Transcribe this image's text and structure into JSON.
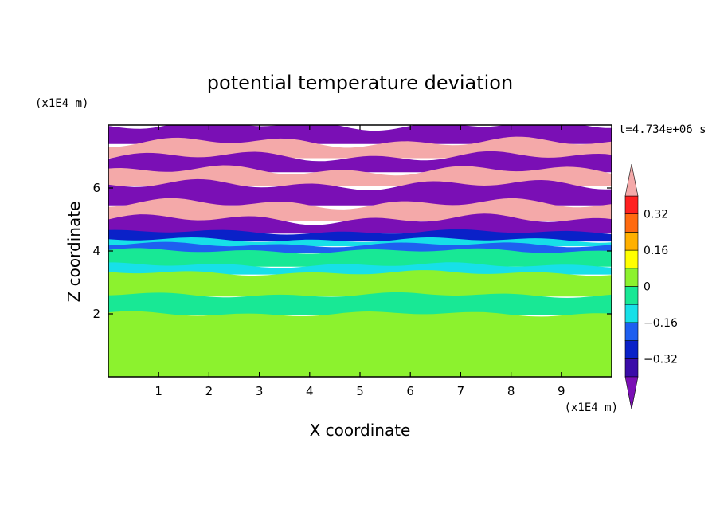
{
  "chart_data": {
    "type": "heatmap",
    "title": "potential temperature deviation",
    "xlabel": "X coordinate",
    "ylabel": "Z coordinate",
    "x_unit_label": "(x1E4 m)",
    "y_unit_label": "(x1E4 m)",
    "time_label": "t=4.734e+06 s",
    "xlim": [
      0,
      10
    ],
    "ylim": [
      0,
      8
    ],
    "x_ticks": [
      "1",
      "2",
      "3",
      "4",
      "5",
      "6",
      "7",
      "8",
      "9"
    ],
    "y_ticks": [
      "2",
      "4",
      "6"
    ],
    "colorbar": {
      "levels": [
        -0.4,
        -0.32,
        -0.24,
        -0.16,
        -0.08,
        0,
        0.08,
        0.16,
        0.24,
        0.32,
        0.4
      ],
      "labels": [
        "0.32",
        "0.16",
        "0",
        "−0.16",
        "−0.32"
      ],
      "colors": [
        "#7a0fb5",
        "#3a0ca8",
        "#0a21c8",
        "#1e5ff0",
        "#17e0e8",
        "#18e895",
        "#8cf22e",
        "#ffff00",
        "#ffb000",
        "#ff6a10",
        "#ff2020",
        "#f4a9a9"
      ],
      "extend": "both"
    },
    "bands": [
      {
        "z_bottom": 7.45,
        "z_top": 8.0,
        "color": "#7a0fb5"
      },
      {
        "z_bottom": 7.0,
        "z_top": 7.45,
        "color": "#f4a9a9"
      },
      {
        "z_bottom": 6.55,
        "z_top": 7.0,
        "color": "#7a0fb5"
      },
      {
        "z_bottom": 6.1,
        "z_top": 6.55,
        "color": "#f4a9a9"
      },
      {
        "z_bottom": 5.5,
        "z_top": 6.1,
        "color": "#7a0fb5"
      },
      {
        "z_bottom": 5.0,
        "z_top": 5.5,
        "color": "#f4a9a9"
      },
      {
        "z_bottom": 4.6,
        "z_top": 5.0,
        "color": "#7a0fb5"
      },
      {
        "z_bottom": 4.35,
        "z_top": 4.6,
        "color": "#0a21c8"
      },
      {
        "z_bottom": 4.2,
        "z_top": 4.35,
        "color": "#17e0e8"
      },
      {
        "z_bottom": 4.0,
        "z_top": 4.2,
        "color": "#1e5ff0"
      },
      {
        "z_bottom": 3.55,
        "z_top": 4.0,
        "color": "#18e895"
      },
      {
        "z_bottom": 3.3,
        "z_top": 3.55,
        "color": "#17e0e8"
      },
      {
        "z_bottom": 2.6,
        "z_top": 3.3,
        "color": "#8cf22e"
      },
      {
        "z_bottom": 2.0,
        "z_top": 2.6,
        "color": "#18e895"
      },
      {
        "z_bottom": 0.0,
        "z_top": 2.0,
        "color": "#8cf22e"
      }
    ]
  }
}
